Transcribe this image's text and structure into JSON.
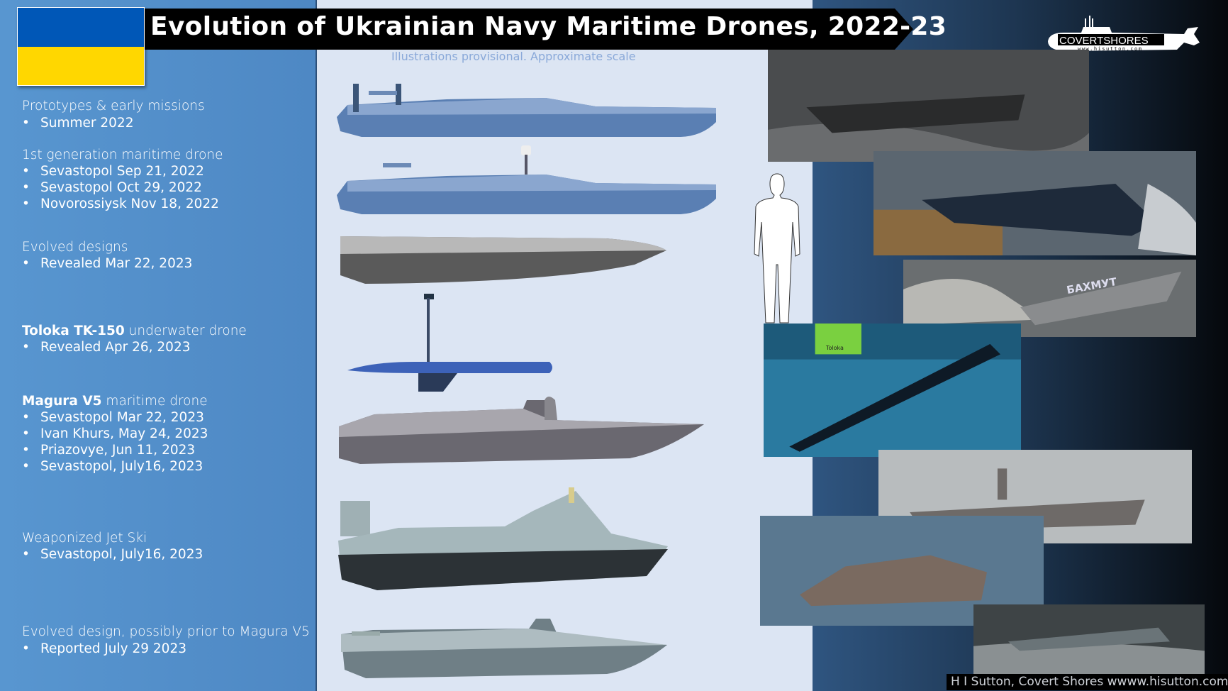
{
  "header": {
    "title": "Evolution of Ukrainian Navy Maritime Drones, 2022-23",
    "subtitle": "Illustrations provisional. Approximate scale"
  },
  "flag": {
    "colors": [
      "#0057b7",
      "#ffd700"
    ]
  },
  "logo": {
    "text": "COVERTSHORES",
    "url_text": "www.hisutton.com"
  },
  "sections": [
    {
      "heading": "Prototypes & early missions",
      "bold": "",
      "items": [
        "Summer 2022"
      ]
    },
    {
      "heading": "1st generation maritime drone",
      "bold": "",
      "items": [
        "Sevastopol Sep 21, 2022",
        "Sevastopol Oct 29, 2022",
        "Novorossiysk Nov 18, 2022"
      ]
    },
    {
      "heading": "Evolved designs",
      "bold": "",
      "items": [
        "Revealed Mar 22, 2023"
      ]
    },
    {
      "heading": " underwater drone",
      "bold": "Toloka TK-150",
      "items": [
        "Revealed Apr 26, 2023"
      ]
    },
    {
      "heading": " maritime drone",
      "bold": "Magura V5",
      "items": [
        "Sevastopol Mar 22, 2023",
        "Ivan Khurs, May 24, 2023",
        "Priazovye, Jun 11, 2023",
        "Sevastopol, July16, 2023"
      ]
    },
    {
      "heading": "Weaponized Jet Ski",
      "bold": "",
      "items": [
        "Sevastopol, July16, 2023"
      ]
    },
    {
      "heading": "Evolved design, possibly prior to Magura V5",
      "bold": "",
      "items": [
        "Reported July 29 2023"
      ]
    }
  ],
  "photos": {
    "bakhmut_label": "БАХМУТ",
    "toloka_label": "Toloka"
  },
  "footer": {
    "credit": "H I Sutton, Covert Shores wwww.hisutton.com"
  },
  "colors": {
    "left_panel": "#5896d0",
    "middle_panel": "#dce5f3",
    "title_bar": "#000000"
  }
}
